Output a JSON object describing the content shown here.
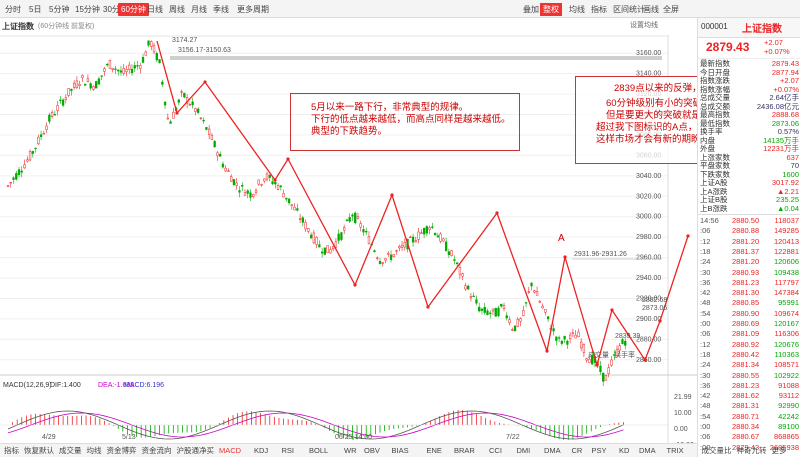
{
  "topbar": {
    "items": [
      "分时",
      "5日",
      "5分钟",
      "15分钟",
      "30分钟",
      "60分钟",
      "日线",
      "周线",
      "月线",
      "季线",
      "更多周期"
    ],
    "active": 5,
    "right_items": [
      "叠加",
      "整权",
      "均线",
      "指标",
      "区间统计",
      "画线",
      "全屏",
      "⊞"
    ]
  },
  "period_row": {
    "items": [
      "分时",
      "5日",
      "5分钟",
      "15分钟",
      "30分钟",
      "60分钟",
      "日线",
      "周线",
      "月线",
      "年线",
      "更多周期"
    ],
    "active": 5
  },
  "chart": {
    "title": "上证指数",
    "subtitle": "(60分钟线 前复权)",
    "options_label": "设置均线",
    "prices": [
      "3160.00",
      "3140.00",
      "3120.00",
      "3100.00",
      "3080.00",
      "3060.00",
      "3040.00",
      "3020.00",
      "3000.00",
      "2980.00",
      "2960.00",
      "2940.00",
      "2920.00",
      "2900.00",
      "2880.00",
      "2860.00"
    ],
    "high_label": "3174.27",
    "zone_label": "3156.17-3150.63",
    "mid_zone_label": "2931.96-2931.26",
    "low_label": "2839.39",
    "last_label": "2882.68",
    "last_label2": "2873.06",
    "a_label": "A",
    "dates": [
      "4/29",
      "5/13",
      "06/25,14:00",
      "7/22"
    ],
    "macd_legend": [
      "MACD(12,26,9)",
      "DIF:1.400",
      "DEA:-1.698",
      "MACD:6.196"
    ],
    "macd_axis": [
      "21.99",
      "10.00",
      "0.00",
      "-10.00",
      "-21.40"
    ],
    "right_tags": [
      "成交量",
      "换手率"
    ]
  },
  "annotations": {
    "left": [
      "5月以来一路下行，非常典型的规律。",
      "下行的低点越来越低，而高点同样是越来越低。",
      "典型的下跌趋势。"
    ],
    "right": [
      "2839点以来的反弹，",
      "60分钟级别有小的突破，",
      "但是要更大的突破就是要",
      "超过我下图标识的A点，",
      "这样市场才会有新的期盼。"
    ]
  },
  "indicators": {
    "items": [
      "指标",
      "恢复默认",
      "成交量",
      "均线",
      "资金博弈",
      "资金流向",
      "沪股通净买",
      "MACD",
      "KDJ",
      "RSI",
      "BOLL",
      "WR",
      "OBV",
      "BIAS",
      "ENE",
      "BRAR",
      "CCI",
      "DMI",
      "DMA",
      "CR",
      "PSY",
      "KD",
      "DMA",
      "TRIX",
      "成交量比",
      "神奇九转",
      "更多"
    ],
    "active": 7
  },
  "sidebar": {
    "code": "000001",
    "name": "上证指数",
    "price": "2879.43",
    "change": "+2.07",
    "change_pct": "+0.07%",
    "rows": [
      {
        "k": "最新指数",
        "v": "2879.43",
        "c": "red"
      },
      {
        "k": "今日开盘",
        "v": "2877.94",
        "c": "red"
      },
      {
        "k": "指数涨跌",
        "v": "+2.07",
        "c": "red"
      },
      {
        "k": "指数涨幅",
        "v": "+0.07%",
        "c": "red"
      },
      {
        "k": "总成交量",
        "v": "2.64亿手",
        "c": "blue"
      },
      {
        "k": "总成交额",
        "v": "2436.08亿元",
        "c": "blue"
      },
      {
        "k": "最高指数",
        "v": "2888.68",
        "c": "red"
      },
      {
        "k": "最低指数",
        "v": "2873.06",
        "c": "green"
      },
      {
        "k": "换手率",
        "v": "0.57%",
        "c": "blue"
      },
      {
        "k": "内盘",
        "v": "14135万手",
        "c": "green"
      },
      {
        "k": "外盘",
        "v": "12231万手",
        "c": "red"
      },
      {
        "k": "上涨家数",
        "v": "637",
        "c": "red"
      },
      {
        "k": "平盘家数",
        "v": "70",
        "c": "blue"
      },
      {
        "k": "下跌家数",
        "v": "1600",
        "c": "green"
      },
      {
        "k": "上证A股",
        "v": "3017.92",
        "c": "red"
      },
      {
        "k": "上A涨跌",
        "v": "▲2.21",
        "c": "red"
      },
      {
        "k": "上证B股",
        "v": "235.25",
        "c": "green"
      },
      {
        "k": "上B涨跌",
        "v": "▲0.04",
        "c": "green"
      }
    ],
    "ticks": [
      {
        "t": "14:56",
        "p": "2880.50",
        "q": "118037",
        "pc": "red",
        "qc": "red"
      },
      {
        "t": ":06",
        "p": "2880.88",
        "q": "149285",
        "pc": "red",
        "qc": "red"
      },
      {
        "t": ":12",
        "p": "2881.20",
        "q": "120413",
        "pc": "red",
        "qc": "red"
      },
      {
        "t": ":18",
        "p": "2881.37",
        "q": "122881",
        "pc": "red",
        "qc": "red"
      },
      {
        "t": ":24",
        "p": "2881.20",
        "q": "120606",
        "pc": "red",
        "qc": "green"
      },
      {
        "t": ":30",
        "p": "2880.93",
        "q": "109438",
        "pc": "red",
        "qc": "green"
      },
      {
        "t": ":36",
        "p": "2881.23",
        "q": "117797",
        "pc": "red",
        "qc": "red"
      },
      {
        "t": ":42",
        "p": "2881.30",
        "q": "147384",
        "pc": "red",
        "qc": "red"
      },
      {
        "t": ":48",
        "p": "2880.85",
        "q": "95991",
        "pc": "red",
        "qc": "green"
      },
      {
        "t": ":54",
        "p": "2880.90",
        "q": "109674",
        "pc": "red",
        "qc": "red"
      },
      {
        "t": ":00",
        "p": "2880.69",
        "q": "120167",
        "pc": "red",
        "qc": "green"
      },
      {
        "t": ":06",
        "p": "2881.09",
        "q": "116306",
        "pc": "red",
        "qc": "red"
      },
      {
        "t": ":12",
        "p": "2880.92",
        "q": "120676",
        "pc": "red",
        "qc": "green"
      },
      {
        "t": ":18",
        "p": "2880.42",
        "q": "110363",
        "pc": "red",
        "qc": "green"
      },
      {
        "t": ":24",
        "p": "2881.34",
        "q": "108571",
        "pc": "red",
        "qc": "red"
      },
      {
        "t": ":30",
        "p": "2880.55",
        "q": "102922",
        "pc": "red",
        "qc": "green"
      },
      {
        "t": ":36",
        "p": "2881.23",
        "q": "91088",
        "pc": "red",
        "qc": "red"
      },
      {
        "t": ":42",
        "p": "2881.62",
        "q": "93112",
        "pc": "red",
        "qc": "red"
      },
      {
        "t": ":48",
        "p": "2881.31",
        "q": "92990",
        "pc": "red",
        "qc": "green"
      },
      {
        "t": ":54",
        "p": "2880.71",
        "q": "42242",
        "pc": "red",
        "qc": "green"
      },
      {
        "t": ":00",
        "p": "2880.34",
        "q": "89100",
        "pc": "red",
        "qc": "green"
      },
      {
        "t": ":06",
        "p": "2880.67",
        "q": "868865",
        "pc": "red",
        "qc": "red"
      },
      {
        "t": ":00",
        "p": "2879.43",
        "q": "2685938",
        "pc": "red",
        "qc": "red"
      }
    ]
  }
}
